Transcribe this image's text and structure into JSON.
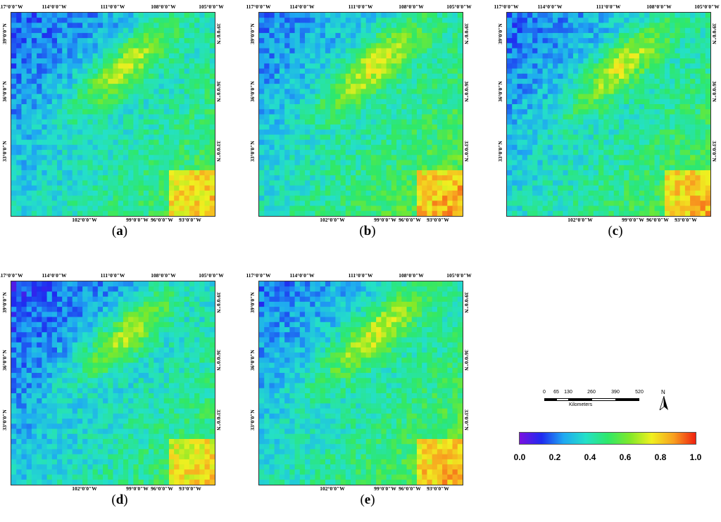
{
  "panels": [
    {
      "id": "a",
      "label": "a",
      "seed": 1,
      "mean": 0.28
    },
    {
      "id": "b",
      "label": "b",
      "seed": 2,
      "mean": 0.32
    },
    {
      "id": "c",
      "label": "c",
      "seed": 3,
      "mean": 0.3
    },
    {
      "id": "d",
      "label": "d",
      "seed": 4,
      "mean": 0.26
    },
    {
      "id": "e",
      "label": "e",
      "seed": 5,
      "mean": 0.31
    }
  ],
  "axes": {
    "top_ticks": [
      "117°0′0″W",
      "114°0′0″W",
      "111°0′0″W",
      "108°0′0″W",
      "105°0′0″W"
    ],
    "bottom_ticks": [
      "102°0′0″W",
      "99°0′0″W",
      "96°0′0″W",
      "93°0′0″W"
    ],
    "left_ticks": [
      "39°0′0″N",
      "36°0′0″N",
      "33°0′0″N"
    ],
    "right_ticks": [
      "39°0′0″N",
      "36°0′0″N",
      "33°0′0″N"
    ]
  },
  "scalebar": {
    "labels": [
      "0",
      "65",
      "130",
      "260",
      "390",
      "520"
    ],
    "unit": "Kilometers"
  },
  "north_arrow": {
    "label": "N",
    "icon": "north-arrow-icon"
  },
  "colorbar": {
    "labels": [
      "0.0",
      "0.2",
      "0.4",
      "0.6",
      "0.8",
      "1.0"
    ],
    "min": 0.0,
    "max": 1.0,
    "colors": [
      "#7a10e0",
      "#1f2bf0",
      "#1fa8f2",
      "#24e0c8",
      "#2ee86a",
      "#7fe82a",
      "#f0f020",
      "#f8a020",
      "#f02010"
    ]
  }
}
